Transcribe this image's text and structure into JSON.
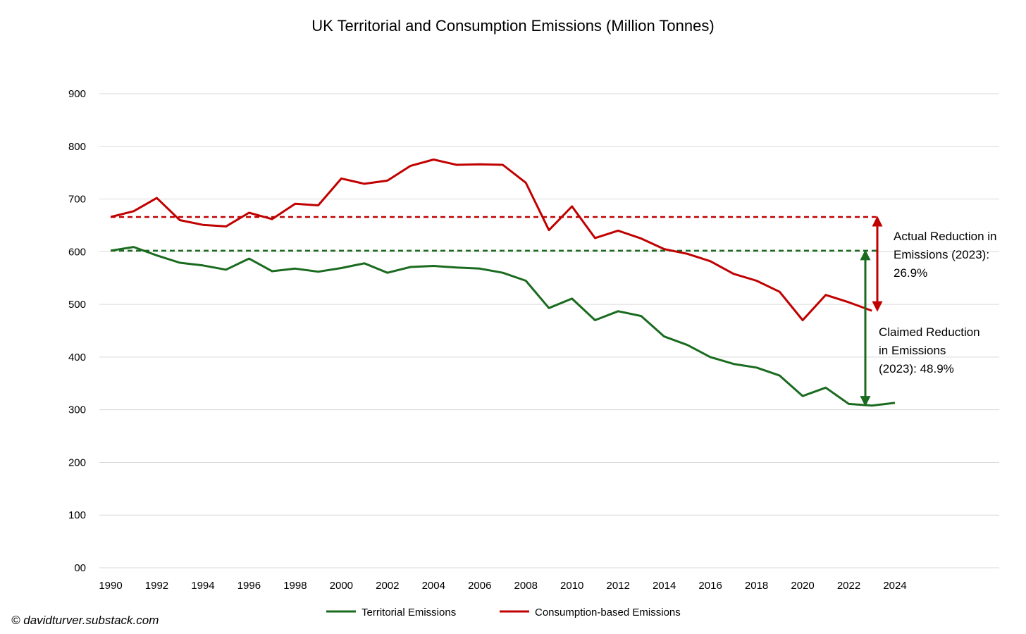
{
  "chart_data": {
    "type": "line",
    "title": "UK Territorial and Consumption Emissions (Million Tonnes)",
    "xlabel": "",
    "ylabel": "",
    "ylim": [
      0,
      900
    ],
    "xlim": [
      1990,
      2024
    ],
    "y_tick_labels": [
      "00",
      "100",
      "200",
      "300",
      "400",
      "500",
      "600",
      "700",
      "800",
      "900"
    ],
    "y_tick_values": [
      0,
      100,
      200,
      300,
      400,
      500,
      600,
      700,
      800,
      900
    ],
    "x_tick_labels": [
      "1990",
      "1992",
      "1994",
      "1996",
      "1998",
      "2000",
      "2002",
      "2004",
      "2006",
      "2008",
      "2010",
      "2012",
      "2014",
      "2016",
      "2018",
      "2020",
      "2022",
      "2024"
    ],
    "grid": true,
    "legend_placement": "bottom",
    "series": [
      {
        "name": "Territorial Emissions",
        "color": "#1a6b1f",
        "x": [
          1990,
          1991,
          1992,
          1993,
          1994,
          1995,
          1996,
          1997,
          1998,
          1999,
          2000,
          2001,
          2002,
          2003,
          2004,
          2005,
          2006,
          2007,
          2008,
          2009,
          2010,
          2011,
          2012,
          2013,
          2014,
          2015,
          2016,
          2017,
          2018,
          2019,
          2020,
          2021,
          2022,
          2023,
          2024
        ],
        "values": [
          602,
          609,
          593,
          579,
          574,
          566,
          587,
          563,
          568,
          562,
          569,
          578,
          560,
          571,
          573,
          570,
          568,
          560,
          545,
          493,
          511,
          470,
          487,
          478,
          439,
          423,
          400,
          387,
          380,
          365,
          326,
          342,
          311,
          308,
          313
        ]
      },
      {
        "name": "Consumption-based Emissions",
        "color": "#c00000",
        "x": [
          1990,
          1991,
          1992,
          1993,
          1994,
          1995,
          1996,
          1997,
          1998,
          1999,
          2000,
          2001,
          2002,
          2003,
          2004,
          2005,
          2006,
          2007,
          2008,
          2009,
          2010,
          2011,
          2012,
          2013,
          2014,
          2015,
          2016,
          2017,
          2018,
          2019,
          2020,
          2021,
          2022,
          2023
        ],
        "values": [
          666,
          677,
          702,
          660,
          651,
          648,
          674,
          662,
          691,
          688,
          739,
          729,
          735,
          763,
          775,
          765,
          766,
          765,
          731,
          641,
          686,
          626,
          640,
          625,
          605,
          596,
          582,
          558,
          545,
          524,
          470,
          518,
          504,
          488
        ]
      }
    ],
    "reference_lines": [
      {
        "series": "Consumption-based Emissions",
        "value": 666,
        "color": "#c00000",
        "style": "dashed"
      },
      {
        "series": "Territorial Emissions",
        "value": 602,
        "color": "#1a6b1f",
        "style": "dashed"
      }
    ],
    "annotations": [
      {
        "id": "actual",
        "lines": [
          "Actual Reduction in",
          "Emissions (2023):",
          "26.9%"
        ],
        "color": "#c00000",
        "arrow_x": 2023,
        "from": 666,
        "to": 488
      },
      {
        "id": "claimed",
        "lines": [
          "Claimed Reduction",
          "in Emissions",
          "(2023): 48.9%"
        ],
        "color": "#1a6b1f",
        "arrow_x": 2023,
        "from": 602,
        "to": 308
      }
    ]
  },
  "credit": "© davidturver.substack.com"
}
